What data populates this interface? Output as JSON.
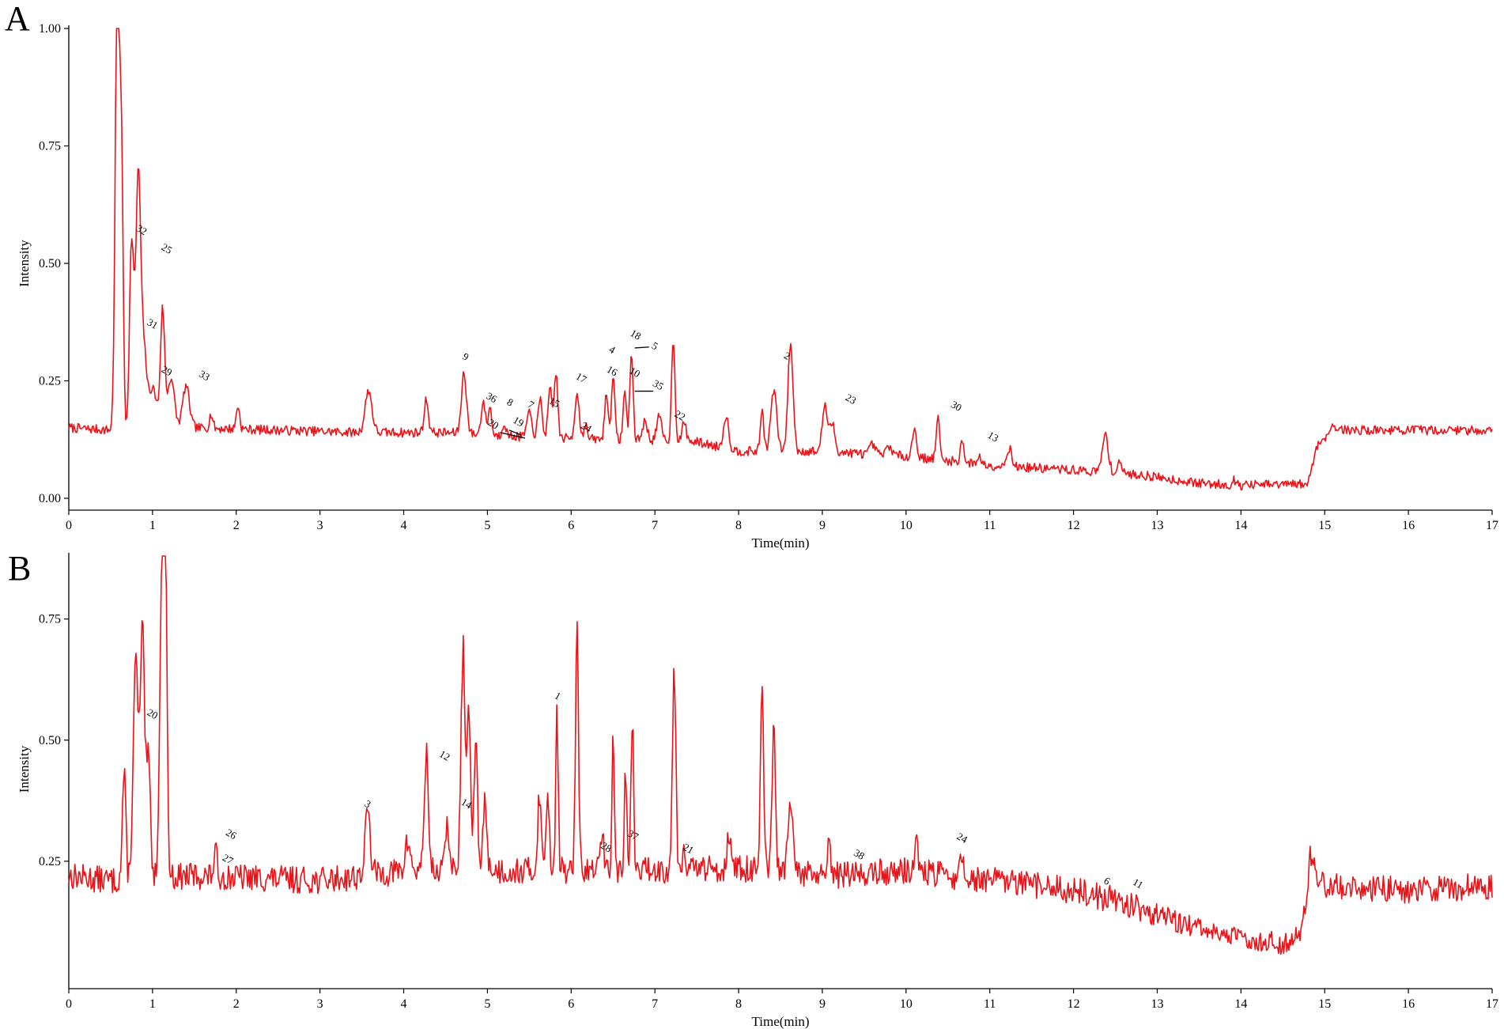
{
  "chart_data": [
    {
      "panel": "A",
      "type": "line",
      "xlabel": "Time(min)",
      "ylabel": "Intensity",
      "xlim": [
        0,
        17
      ],
      "ylim": [
        0,
        1.0
      ],
      "xticks": [
        "0",
        "1",
        "2",
        "3",
        "4",
        "5",
        "6",
        "7",
        "8",
        "9",
        "10",
        "11",
        "12",
        "13",
        "14",
        "15",
        "16",
        "17"
      ],
      "yticks": [
        "0.00",
        "0.25",
        "0.50",
        "0.75",
        "1.00"
      ],
      "grid": false,
      "color": "#e8141a",
      "baseline": [
        [
          0,
          0.15
        ],
        [
          0.5,
          0.145
        ],
        [
          0.55,
          0.14
        ],
        [
          1.5,
          0.15
        ],
        [
          3.5,
          0.14
        ],
        [
          4.5,
          0.14
        ],
        [
          5.5,
          0.13
        ],
        [
          7.5,
          0.12
        ],
        [
          8,
          0.1
        ],
        [
          9,
          0.1
        ],
        [
          10,
          0.09
        ],
        [
          11,
          0.07
        ],
        [
          12,
          0.06
        ],
        [
          12.8,
          0.05
        ],
        [
          13.5,
          0.032
        ],
        [
          14,
          0.028
        ],
        [
          14.8,
          0.03
        ],
        [
          14.9,
          0.11
        ],
        [
          15.1,
          0.145
        ],
        [
          16,
          0.145
        ],
        [
          17,
          0.145
        ]
      ],
      "peaks": [
        [
          0.58,
          0.98,
          0.025
        ],
        [
          0.63,
          0.55,
          0.02
        ],
        [
          0.75,
          0.4,
          0.025
        ],
        [
          0.83,
          0.55,
          0.03
        ],
        [
          0.9,
          0.15,
          0.03
        ],
        [
          1.0,
          0.09,
          0.05
        ],
        [
          1.12,
          0.25,
          0.025
        ],
        [
          1.22,
          0.11,
          0.04
        ],
        [
          1.4,
          0.09,
          0.04
        ],
        [
          1.7,
          0.03,
          0.02
        ],
        [
          2.02,
          0.05,
          0.02
        ],
        [
          3.58,
          0.09,
          0.04
        ],
        [
          4.27,
          0.07,
          0.025
        ],
        [
          4.72,
          0.13,
          0.03
        ],
        [
          4.95,
          0.07,
          0.025
        ],
        [
          5.03,
          0.06,
          0.02
        ],
        [
          5.2,
          0.03,
          0.02
        ],
        [
          5.5,
          0.05,
          0.03
        ],
        [
          5.63,
          0.08,
          0.025
        ],
        [
          5.75,
          0.1,
          0.025
        ],
        [
          5.82,
          0.14,
          0.02
        ],
        [
          6.07,
          0.1,
          0.025
        ],
        [
          6.17,
          0.03,
          0.02
        ],
        [
          6.42,
          0.1,
          0.02
        ],
        [
          6.5,
          0.14,
          0.02
        ],
        [
          6.64,
          0.1,
          0.02
        ],
        [
          6.72,
          0.18,
          0.02
        ],
        [
          6.88,
          0.04,
          0.03
        ],
        [
          7.05,
          0.05,
          0.03
        ],
        [
          7.22,
          0.22,
          0.02
        ],
        [
          7.35,
          0.04,
          0.025
        ],
        [
          7.85,
          0.07,
          0.03
        ],
        [
          8.28,
          0.09,
          0.02
        ],
        [
          8.42,
          0.13,
          0.035
        ],
        [
          8.62,
          0.23,
          0.03
        ],
        [
          9.03,
          0.1,
          0.03
        ],
        [
          9.12,
          0.06,
          0.03
        ],
        [
          9.6,
          0.02,
          0.03
        ],
        [
          9.8,
          0.02,
          0.03
        ],
        [
          10.1,
          0.06,
          0.025
        ],
        [
          10.38,
          0.09,
          0.02
        ],
        [
          10.67,
          0.05,
          0.02
        ],
        [
          10.87,
          0.02,
          0.02
        ],
        [
          11.23,
          0.04,
          0.03
        ],
        [
          12.38,
          0.08,
          0.035
        ],
        [
          12.55,
          0.03,
          0.02
        ],
        [
          13.92,
          0.01,
          0.02
        ],
        [
          15.1,
          0.01,
          0.05
        ]
      ],
      "noise": 0.01,
      "seed": 7,
      "peak_labels": [
        {
          "text": "32",
          "x": 0.85,
          "y": 0.565,
          "rot": 30
        },
        {
          "text": "25",
          "x": 1.15,
          "y": 0.525,
          "rot": 30
        },
        {
          "text": "31",
          "x": 0.98,
          "y": 0.365,
          "rot": 30
        },
        {
          "text": "29",
          "x": 1.15,
          "y": 0.265,
          "rot": 30
        },
        {
          "text": "33",
          "x": 1.6,
          "y": 0.255,
          "rot": 30
        },
        {
          "text": "9",
          "x": 4.72,
          "y": 0.295,
          "rot": 30
        },
        {
          "text": "36",
          "x": 5.03,
          "y": 0.208,
          "rot": 30
        },
        {
          "text": "8",
          "x": 5.25,
          "y": 0.198,
          "rot": 30
        },
        {
          "text": "7",
          "x": 5.5,
          "y": 0.193,
          "rot": 30
        },
        {
          "text": "20",
          "x": 5.05,
          "y": 0.152,
          "rot": 30
        },
        {
          "text": "19",
          "x": 5.35,
          "y": 0.157,
          "rot": 30
        },
        {
          "text": "15",
          "x": 5.78,
          "y": 0.198,
          "rot": 30
        },
        {
          "text": "17",
          "x": 6.1,
          "y": 0.25,
          "rot": 30
        },
        {
          "text": "24",
          "x": 6.16,
          "y": 0.145,
          "rot": 30
        },
        {
          "text": "16",
          "x": 6.47,
          "y": 0.265,
          "rot": 30
        },
        {
          "text": "4",
          "x": 6.47,
          "y": 0.31,
          "rot": 30
        },
        {
          "text": "18",
          "x": 6.75,
          "y": 0.342,
          "rot": 30
        },
        {
          "text": "5",
          "x": 6.98,
          "y": 0.318,
          "rot": 30
        },
        {
          "text": "10",
          "x": 6.74,
          "y": 0.262,
          "rot": 30
        },
        {
          "text": "35",
          "x": 7.02,
          "y": 0.235,
          "rot": 30
        },
        {
          "text": "22",
          "x": 7.28,
          "y": 0.17,
          "rot": 30
        },
        {
          "text": "2",
          "x": 8.56,
          "y": 0.297,
          "rot": 30
        },
        {
          "text": "23",
          "x": 9.32,
          "y": 0.205,
          "rot": 30
        },
        {
          "text": "30",
          "x": 10.58,
          "y": 0.19,
          "rot": 30
        },
        {
          "text": "13",
          "x": 11.02,
          "y": 0.125,
          "rot": 30
        }
      ],
      "leaders": [
        [
          [
            5.15,
            0.14
          ],
          [
            5.45,
            0.128
          ]
        ],
        [
          [
            5.26,
            0.145
          ],
          [
            5.4,
            0.135
          ]
        ],
        [
          [
            6.76,
            0.32
          ],
          [
            6.93,
            0.322
          ]
        ],
        [
          [
            6.76,
            0.228
          ],
          [
            6.98,
            0.228
          ]
        ]
      ]
    },
    {
      "panel": "B",
      "type": "line",
      "xlabel": "Time(min)",
      "ylabel": "Intensity",
      "xlim": [
        0,
        17
      ],
      "ylim": [
        0,
        0.88
      ],
      "xticks": [
        "0",
        "1",
        "2",
        "3",
        "4",
        "5",
        "6",
        "7",
        "8",
        "9",
        "10",
        "11",
        "12",
        "13",
        "14",
        "15",
        "16",
        "17"
      ],
      "yticks": [
        "0.25",
        "0.50",
        "0.75"
      ],
      "grid": false,
      "color": "#e8141a",
      "baseline": [
        [
          0,
          0.22
        ],
        [
          0.5,
          0.21
        ],
        [
          1.5,
          0.22
        ],
        [
          3,
          0.21
        ],
        [
          4,
          0.23
        ],
        [
          6,
          0.23
        ],
        [
          8,
          0.235
        ],
        [
          9,
          0.22
        ],
        [
          10,
          0.23
        ],
        [
          11,
          0.21
        ],
        [
          12,
          0.19
        ],
        [
          12.5,
          0.17
        ],
        [
          13,
          0.14
        ],
        [
          13.5,
          0.11
        ],
        [
          14,
          0.09
        ],
        [
          14.5,
          0.08
        ],
        [
          14.7,
          0.1
        ],
        [
          14.85,
          0.24
        ],
        [
          15,
          0.2
        ],
        [
          16,
          0.19
        ],
        [
          17,
          0.2
        ]
      ],
      "peaks": [
        [
          0.66,
          0.22,
          0.02
        ],
        [
          0.8,
          0.45,
          0.03
        ],
        [
          0.88,
          0.5,
          0.025
        ],
        [
          0.95,
          0.24,
          0.025
        ],
        [
          1.12,
          0.66,
          0.03
        ],
        [
          1.15,
          0.55,
          0.02
        ],
        [
          1.75,
          0.05,
          0.02
        ],
        [
          3.57,
          0.13,
          0.03
        ],
        [
          4.05,
          0.06,
          0.03
        ],
        [
          4.27,
          0.24,
          0.025
        ],
        [
          4.52,
          0.11,
          0.02
        ],
        [
          4.71,
          0.46,
          0.025
        ],
        [
          4.78,
          0.32,
          0.02
        ],
        [
          4.86,
          0.27,
          0.02
        ],
        [
          4.97,
          0.14,
          0.025
        ],
        [
          5.62,
          0.16,
          0.02
        ],
        [
          5.72,
          0.16,
          0.02
        ],
        [
          5.83,
          0.34,
          0.015
        ],
        [
          6.07,
          0.49,
          0.018
        ],
        [
          6.37,
          0.08,
          0.02
        ],
        [
          6.5,
          0.26,
          0.015
        ],
        [
          6.65,
          0.2,
          0.015
        ],
        [
          6.73,
          0.32,
          0.015
        ],
        [
          7.23,
          0.42,
          0.02
        ],
        [
          7.35,
          0.05,
          0.02
        ],
        [
          7.88,
          0.08,
          0.02
        ],
        [
          8.28,
          0.38,
          0.018
        ],
        [
          8.42,
          0.29,
          0.02
        ],
        [
          8.62,
          0.13,
          0.03
        ],
        [
          9.08,
          0.06,
          0.015
        ],
        [
          10.12,
          0.07,
          0.02
        ],
        [
          10.67,
          0.04,
          0.02
        ],
        [
          14.82,
          0.04,
          0.015
        ]
      ],
      "noise": 0.028,
      "seed": 13,
      "peak_labels": [
        {
          "text": "20",
          "x": 0.98,
          "y": 0.548,
          "rot": 30
        },
        {
          "text": "26",
          "x": 1.92,
          "y": 0.3,
          "rot": 30
        },
        {
          "text": "27",
          "x": 1.88,
          "y": 0.248,
          "rot": 30
        },
        {
          "text": "3",
          "x": 3.55,
          "y": 0.362,
          "rot": 30
        },
        {
          "text": "12",
          "x": 4.47,
          "y": 0.462,
          "rot": 30
        },
        {
          "text": "14",
          "x": 4.73,
          "y": 0.363,
          "rot": 30
        },
        {
          "text": "1",
          "x": 5.82,
          "y": 0.585,
          "rot": 30
        },
        {
          "text": "28",
          "x": 6.4,
          "y": 0.273,
          "rot": 30
        },
        {
          "text": "37",
          "x": 6.72,
          "y": 0.298,
          "rot": 30
        },
        {
          "text": "21",
          "x": 7.38,
          "y": 0.27,
          "rot": 30
        },
        {
          "text": "38",
          "x": 9.42,
          "y": 0.258,
          "rot": 30
        },
        {
          "text": "24",
          "x": 10.65,
          "y": 0.292,
          "rot": 30
        },
        {
          "text": "6",
          "x": 12.38,
          "y": 0.203,
          "rot": 30
        },
        {
          "text": "11",
          "x": 12.75,
          "y": 0.198,
          "rot": 30
        }
      ],
      "leaders": []
    }
  ]
}
